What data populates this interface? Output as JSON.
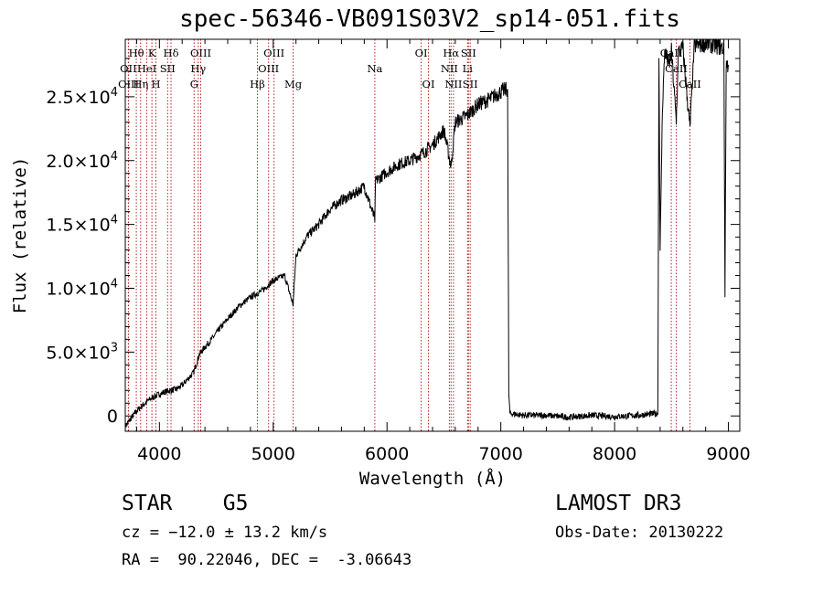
{
  "header": {
    "title": "spec-56346-VB091S03V2_sp14-051.fits"
  },
  "info": {
    "class_label": "STAR    G5",
    "survey": "LAMOST DR3",
    "cz": "cz = −12.0 ± 13.2 km/s",
    "obs_date": "Obs-Date: 20130222",
    "ra_dec": "RA =  90.22046, DEC =  -3.06643"
  },
  "colors": {
    "spectrum": "#000000",
    "line_markers": "#b22222",
    "axes": "#000000"
  },
  "chart_data": {
    "type": "line",
    "title": "spec-56346-VB091S03V2_sp14-051.fits",
    "xlabel": "Wavelength (Å)",
    "ylabel": "Flux (relative)",
    "xlim": [
      3700,
      9100
    ],
    "ylim": [
      -1200,
      29500
    ],
    "x_ticks": [
      4000,
      5000,
      6000,
      7000,
      8000,
      9000
    ],
    "y_ticks": [
      {
        "value": 0,
        "mantissa": "0",
        "exp": ""
      },
      {
        "value": 5000,
        "mantissa": "5.0×10",
        "exp": "3"
      },
      {
        "value": 10000,
        "mantissa": "1.0×10",
        "exp": "4"
      },
      {
        "value": 15000,
        "mantissa": "1.5×10",
        "exp": "4"
      },
      {
        "value": 20000,
        "mantissa": "2.0×10",
        "exp": "4"
      },
      {
        "value": 25000,
        "mantissa": "2.5×10",
        "exp": "4"
      }
    ],
    "series": [
      {
        "name": "flux",
        "x": [
          3700,
          3750,
          3800,
          3850,
          3900,
          3950,
          4000,
          4050,
          4100,
          4150,
          4200,
          4250,
          4300,
          4350,
          4400,
          4450,
          4500,
          4600,
          4700,
          4800,
          4861,
          4900,
          5000,
          5100,
          5175,
          5200,
          5300,
          5400,
          5500,
          5600,
          5700,
          5800,
          5893,
          5900,
          6000,
          6100,
          6200,
          6300,
          6400,
          6500,
          6563,
          6600,
          6700,
          6800,
          6900,
          7000,
          7060,
          7070,
          7080,
          7200,
          7400,
          7600,
          7800,
          8000,
          8200,
          8380,
          8390,
          8400,
          8420,
          8440,
          8460,
          8480,
          8500,
          8542,
          8560,
          8600,
          8662,
          8700,
          8800,
          8900,
          8960,
          8970,
          8980,
          9000
        ],
        "y": [
          -800,
          -200,
          400,
          800,
          1200,
          1500,
          1700,
          1900,
          2000,
          2100,
          2400,
          2900,
          3400,
          4800,
          5400,
          5900,
          6500,
          7600,
          8600,
          9300,
          9600,
          9800,
          10600,
          11000,
          8700,
          12600,
          14100,
          15000,
          16200,
          16900,
          17300,
          18000,
          15400,
          18400,
          19100,
          19700,
          20000,
          20500,
          21200,
          22400,
          19500,
          23000,
          23500,
          24400,
          24800,
          25400,
          25600,
          1800,
          200,
          50,
          50,
          -100,
          50,
          -50,
          50,
          200,
          28000,
          13000,
          24000,
          28500,
          28000,
          27500,
          28500,
          23000,
          28500,
          28800,
          22500,
          29000,
          29200,
          29000,
          28800,
          9500,
          27500,
          27500
        ]
      }
    ],
    "line_markers": [
      {
        "label": "Hθ",
        "x": 3797,
        "row": 1
      },
      {
        "label": "OII",
        "x": 3727,
        "row": 2
      },
      {
        "label": "OIII",
        "x": 3729,
        "row": 3
      },
      {
        "label": "K",
        "x": 3934,
        "row": 1
      },
      {
        "label": "HeI",
        "x": 3889,
        "row": 2
      },
      {
        "label": "Hη",
        "x": 3835,
        "row": 3
      },
      {
        "label": "H",
        "x": 3969,
        "row": 3
      },
      {
        "label": "SII",
        "x": 4072,
        "row": 2
      },
      {
        "label": "Hδ",
        "x": 4102,
        "row": 1
      },
      {
        "label": "OIII",
        "x": 4363,
        "row": 1
      },
      {
        "label": "Hγ",
        "x": 4341,
        "row": 2
      },
      {
        "label": "G",
        "x": 4305,
        "row": 3
      },
      {
        "label": "Hβ",
        "x": 4861,
        "row": 3
      },
      {
        "label": "OIII",
        "x": 5007,
        "row": 1
      },
      {
        "label": "OIII",
        "x": 4959,
        "row": 2
      },
      {
        "label": "Mg",
        "x": 5175,
        "row": 3
      },
      {
        "label": "Na",
        "x": 5893,
        "row": 2
      },
      {
        "label": "OI",
        "x": 6300,
        "row": 1
      },
      {
        "label": "OI",
        "x": 6364,
        "row": 3
      },
      {
        "label": "Hα",
        "x": 6563,
        "row": 1
      },
      {
        "label": "NII",
        "x": 6548,
        "row": 2
      },
      {
        "label": "NII",
        "x": 6584,
        "row": 3
      },
      {
        "label": "SII",
        "x": 6716,
        "row": 1
      },
      {
        "label": "Li",
        "x": 6708,
        "row": 2
      },
      {
        "label": "SII",
        "x": 6731,
        "row": 3
      },
      {
        "label": "CaII",
        "x": 8498,
        "row": 1
      },
      {
        "label": "CaII",
        "x": 8542,
        "row": 2
      },
      {
        "label": "CaII",
        "x": 8662,
        "row": 3
      }
    ]
  }
}
